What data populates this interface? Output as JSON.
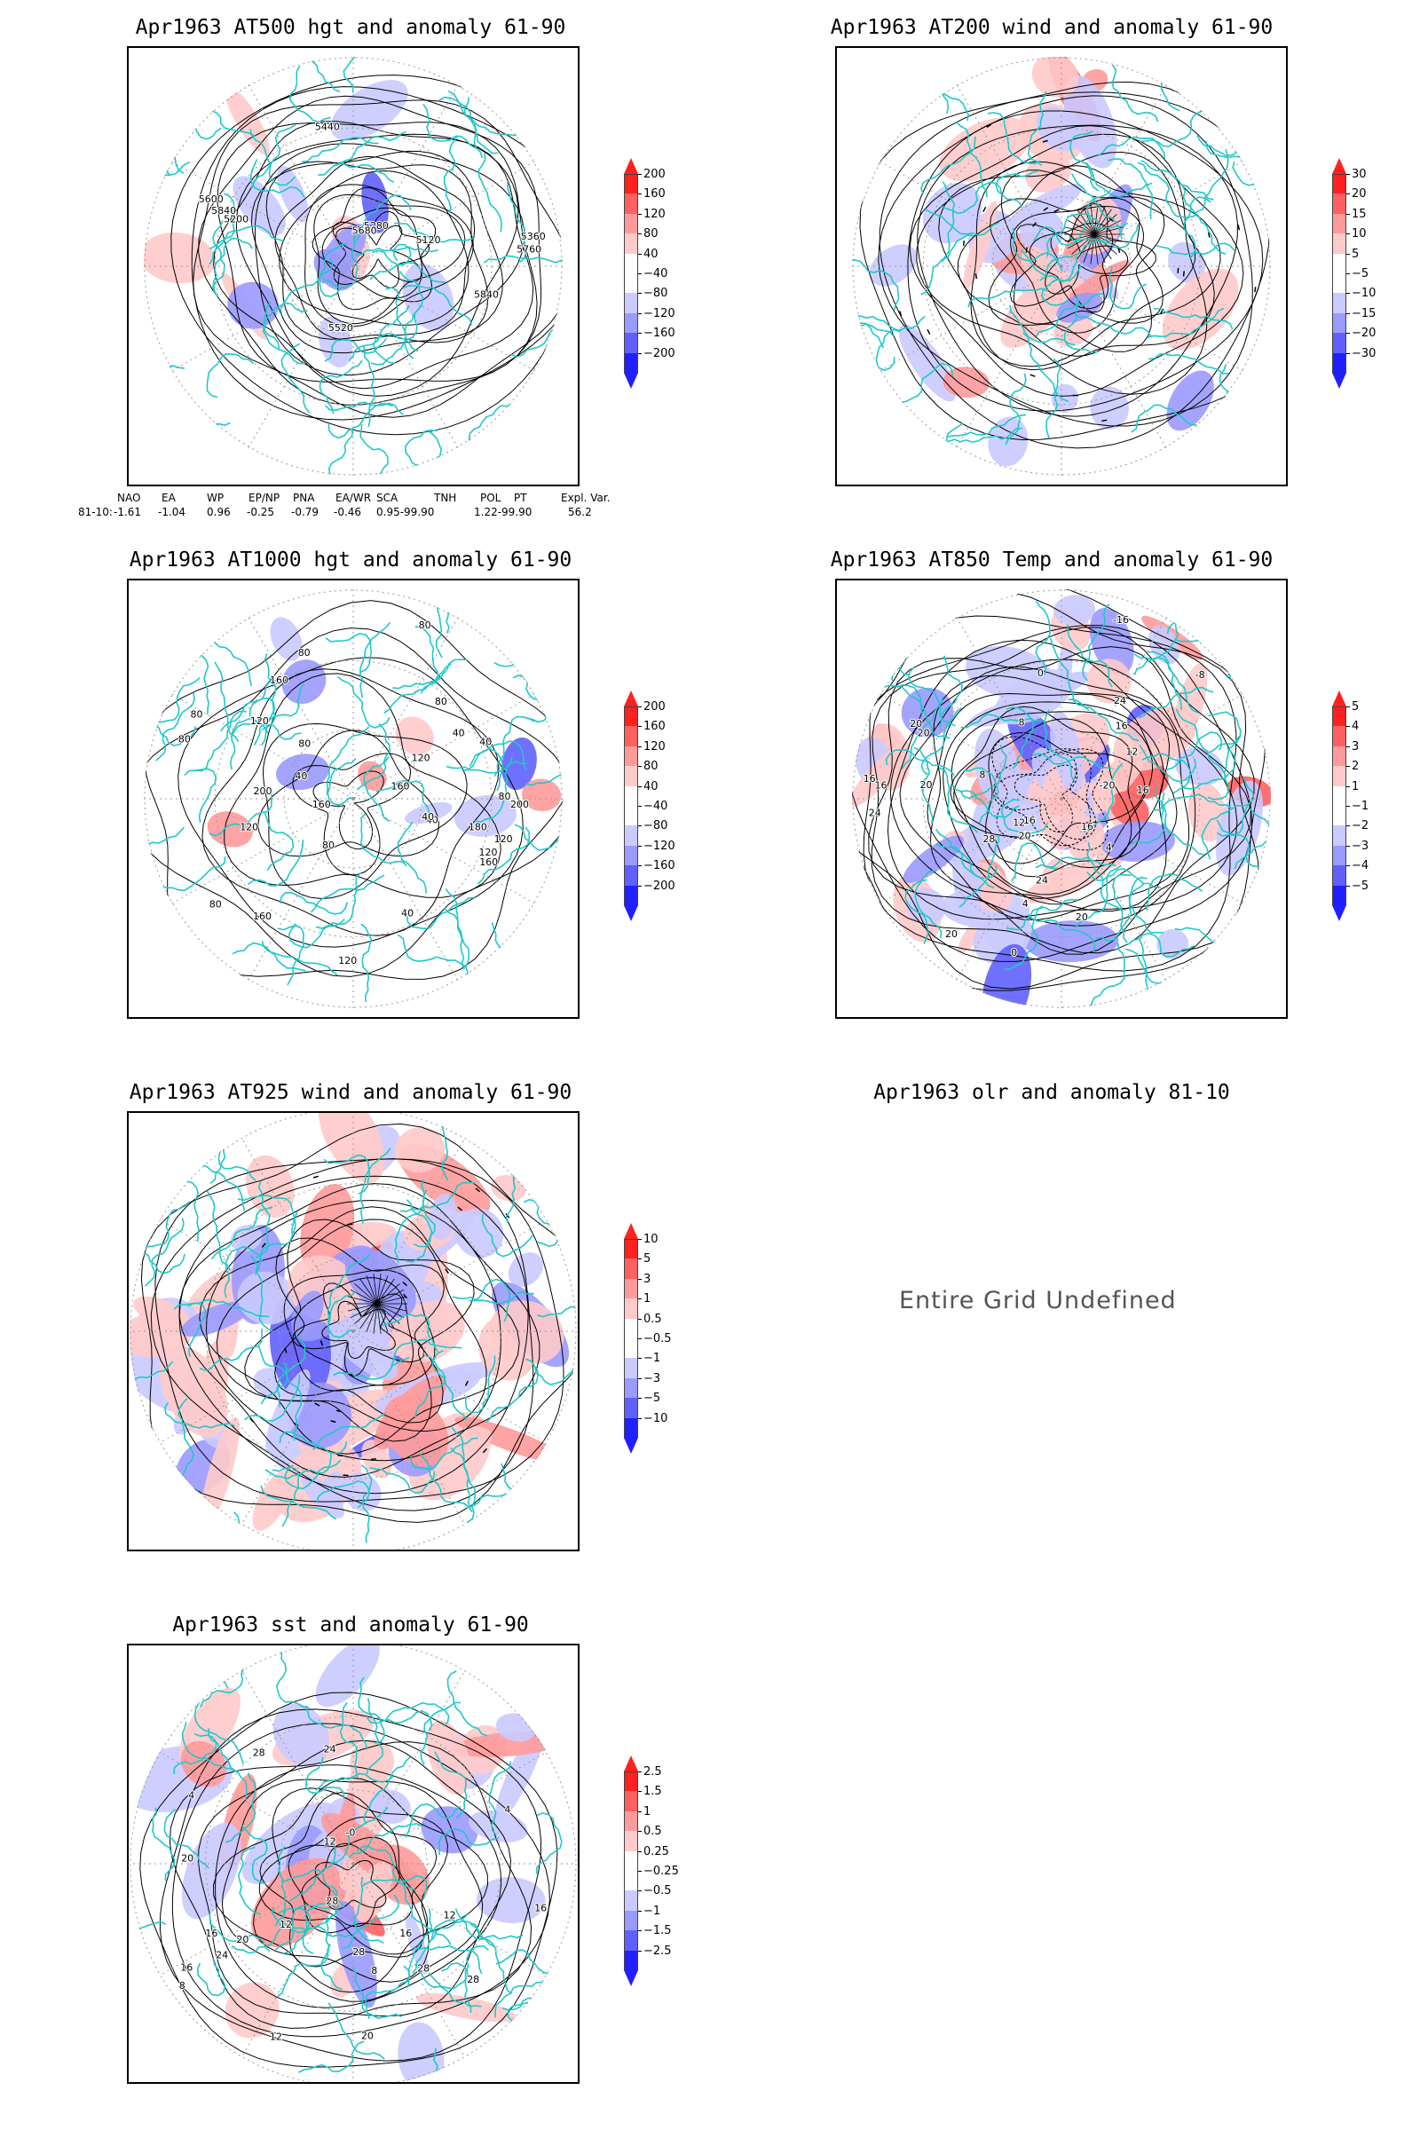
{
  "panels": [
    {
      "id": "z500",
      "title": "Apr1963 AT500 hgt and anomaly 61-90",
      "colorbar": {
        "labels": [
          "200",
          "160",
          "120",
          "80",
          "40",
          "−40",
          "−80",
          "−120",
          "−160",
          "−200"
        ],
        "colors": [
          "#ff2020",
          "#ff6060",
          "#ff9a9a",
          "#ffcaca",
          "#ffffff",
          "#ffffff",
          "#cacaff",
          "#9a9aff",
          "#6060ff",
          "#2020ff"
        ]
      },
      "contour_labels": [
        "5200",
        "5120",
        "5280",
        "5360",
        "5440",
        "5520",
        "5600",
        "5680",
        "5760",
        "5840",
        "5840"
      ]
    },
    {
      "id": "u200",
      "title": "Apr1963 AT200 wind and anomaly 61-90",
      "colorbar": {
        "labels": [
          "30",
          "20",
          "15",
          "10",
          "5",
          "−5",
          "−10",
          "−15",
          "−20",
          "−30"
        ],
        "colors": [
          "#ff2020",
          "#ff6060",
          "#ff9a9a",
          "#ffcaca",
          "#ffffff",
          "#ffffff",
          "#cacaff",
          "#9a9aff",
          "#6060ff",
          "#2020ff"
        ]
      },
      "contour_labels": []
    },
    {
      "id": "z1000",
      "title": "Apr1963 AT1000 hgt and anomaly 61-90",
      "colorbar": {
        "labels": [
          "200",
          "160",
          "120",
          "80",
          "40",
          "−40",
          "−80",
          "−120",
          "−160",
          "−200"
        ],
        "colors": [
          "#ff2020",
          "#ff6060",
          "#ff9a9a",
          "#ffcaca",
          "#ffffff",
          "#ffffff",
          "#cacaff",
          "#9a9aff",
          "#6060ff",
          "#2020ff"
        ]
      },
      "contour_labels": [
        "80",
        "80",
        "120",
        "160",
        "200",
        "160",
        "120",
        "160",
        "120",
        "80",
        "120",
        "160",
        "80",
        "40",
        "120",
        "200",
        "180",
        "120",
        "40",
        "80",
        "40",
        "160",
        "80",
        "40",
        "80",
        "80",
        "40",
        "40",
        "80"
      ]
    },
    {
      "id": "t850",
      "title": "Apr1963 AT850 Temp and anomaly 61-90",
      "colorbar": {
        "labels": [
          "5",
          "4",
          "3",
          "2",
          "1",
          "−1",
          "−2",
          "−3",
          "−4",
          "−5"
        ],
        "colors": [
          "#ff2020",
          "#ff6060",
          "#ff9a9a",
          "#ffcaca",
          "#ffffff",
          "#ffffff",
          "#cacaff",
          "#9a9aff",
          "#6060ff",
          "#2020ff"
        ]
      },
      "contour_labels": [
        "16",
        "12",
        "8",
        "8",
        "4",
        "0",
        "16",
        "16",
        "20",
        "16",
        "16",
        "-16",
        "-20",
        "20",
        "12",
        "-8",
        "0",
        "4",
        "20",
        "16",
        "24",
        "20",
        "24",
        "28",
        "20",
        "20",
        "24"
      ]
    },
    {
      "id": "u925",
      "title": "Apr1963 AT925 wind and anomaly 61-90",
      "colorbar": {
        "labels": [
          "10",
          "5",
          "3",
          "1",
          "0.5",
          "−0.5",
          "−1",
          "−3",
          "−5",
          "−10"
        ],
        "colors": [
          "#ff2020",
          "#ff6060",
          "#ff9a9a",
          "#ffcaca",
          "#ffffff",
          "#ffffff",
          "#cacaff",
          "#9a9aff",
          "#6060ff",
          "#2020ff"
        ]
      },
      "contour_labels": []
    },
    {
      "id": "olr",
      "title": "Apr1963 olr and anomaly 81-10",
      "message": "Entire Grid Undefined"
    },
    {
      "id": "sst",
      "title": "Apr1963 sst and anomaly 61-90",
      "colorbar": {
        "labels": [
          "2.5",
          "1.5",
          "1",
          "0.5",
          "0.25",
          "−0.25",
          "−0.5",
          "−1",
          "−1.5",
          "−2.5"
        ],
        "colors": [
          "#ff2020",
          "#ff6060",
          "#ff9a9a",
          "#ffcaca",
          "#ffffff",
          "#ffffff",
          "#cacaff",
          "#9a9aff",
          "#6060ff",
          "#2020ff"
        ]
      },
      "contour_labels": [
        "28",
        "28",
        "28",
        "24",
        "20",
        "16",
        "12",
        "12",
        "8",
        "16",
        "4",
        "-0",
        "28",
        "20",
        "16",
        "12",
        "4",
        "8",
        "12",
        "16",
        "20",
        "24",
        "28"
      ]
    }
  ],
  "indices": {
    "headers": [
      "NAO",
      "EA",
      "WP",
      "EP/NP",
      "PNA",
      "EA/WR",
      "SCA",
      "TNH",
      "POL",
      "PT",
      "Expl. Var."
    ],
    "row_label": "81-10:",
    "values": [
      "-1.61",
      "-1.04",
      "0.96",
      "-0.25",
      "-0.79",
      "-0.46",
      "0.95-99.90",
      "",
      "1.22-99.90",
      "",
      "56.2"
    ]
  },
  "colors": {
    "coast": "#20c8c8",
    "contour": "#000000",
    "grid": "#999999"
  }
}
